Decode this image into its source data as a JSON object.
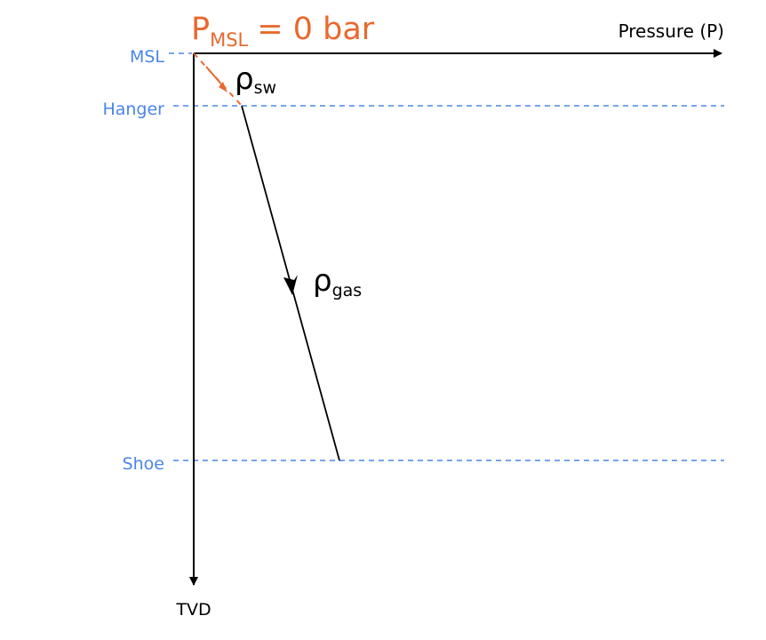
{
  "header": {
    "pressure_label": {
      "symbol": "P",
      "subscript": "MSL",
      "rest": "= 0 bar"
    }
  },
  "axes": {
    "x_label": "Pressure (P)",
    "y_label": "TVD"
  },
  "depths": [
    "MSL",
    "Hanger",
    "Shoe"
  ],
  "densities": [
    {
      "symbol": "ρ",
      "subscript": "sw"
    },
    {
      "symbol": "ρ",
      "subscript": "gas"
    }
  ]
}
